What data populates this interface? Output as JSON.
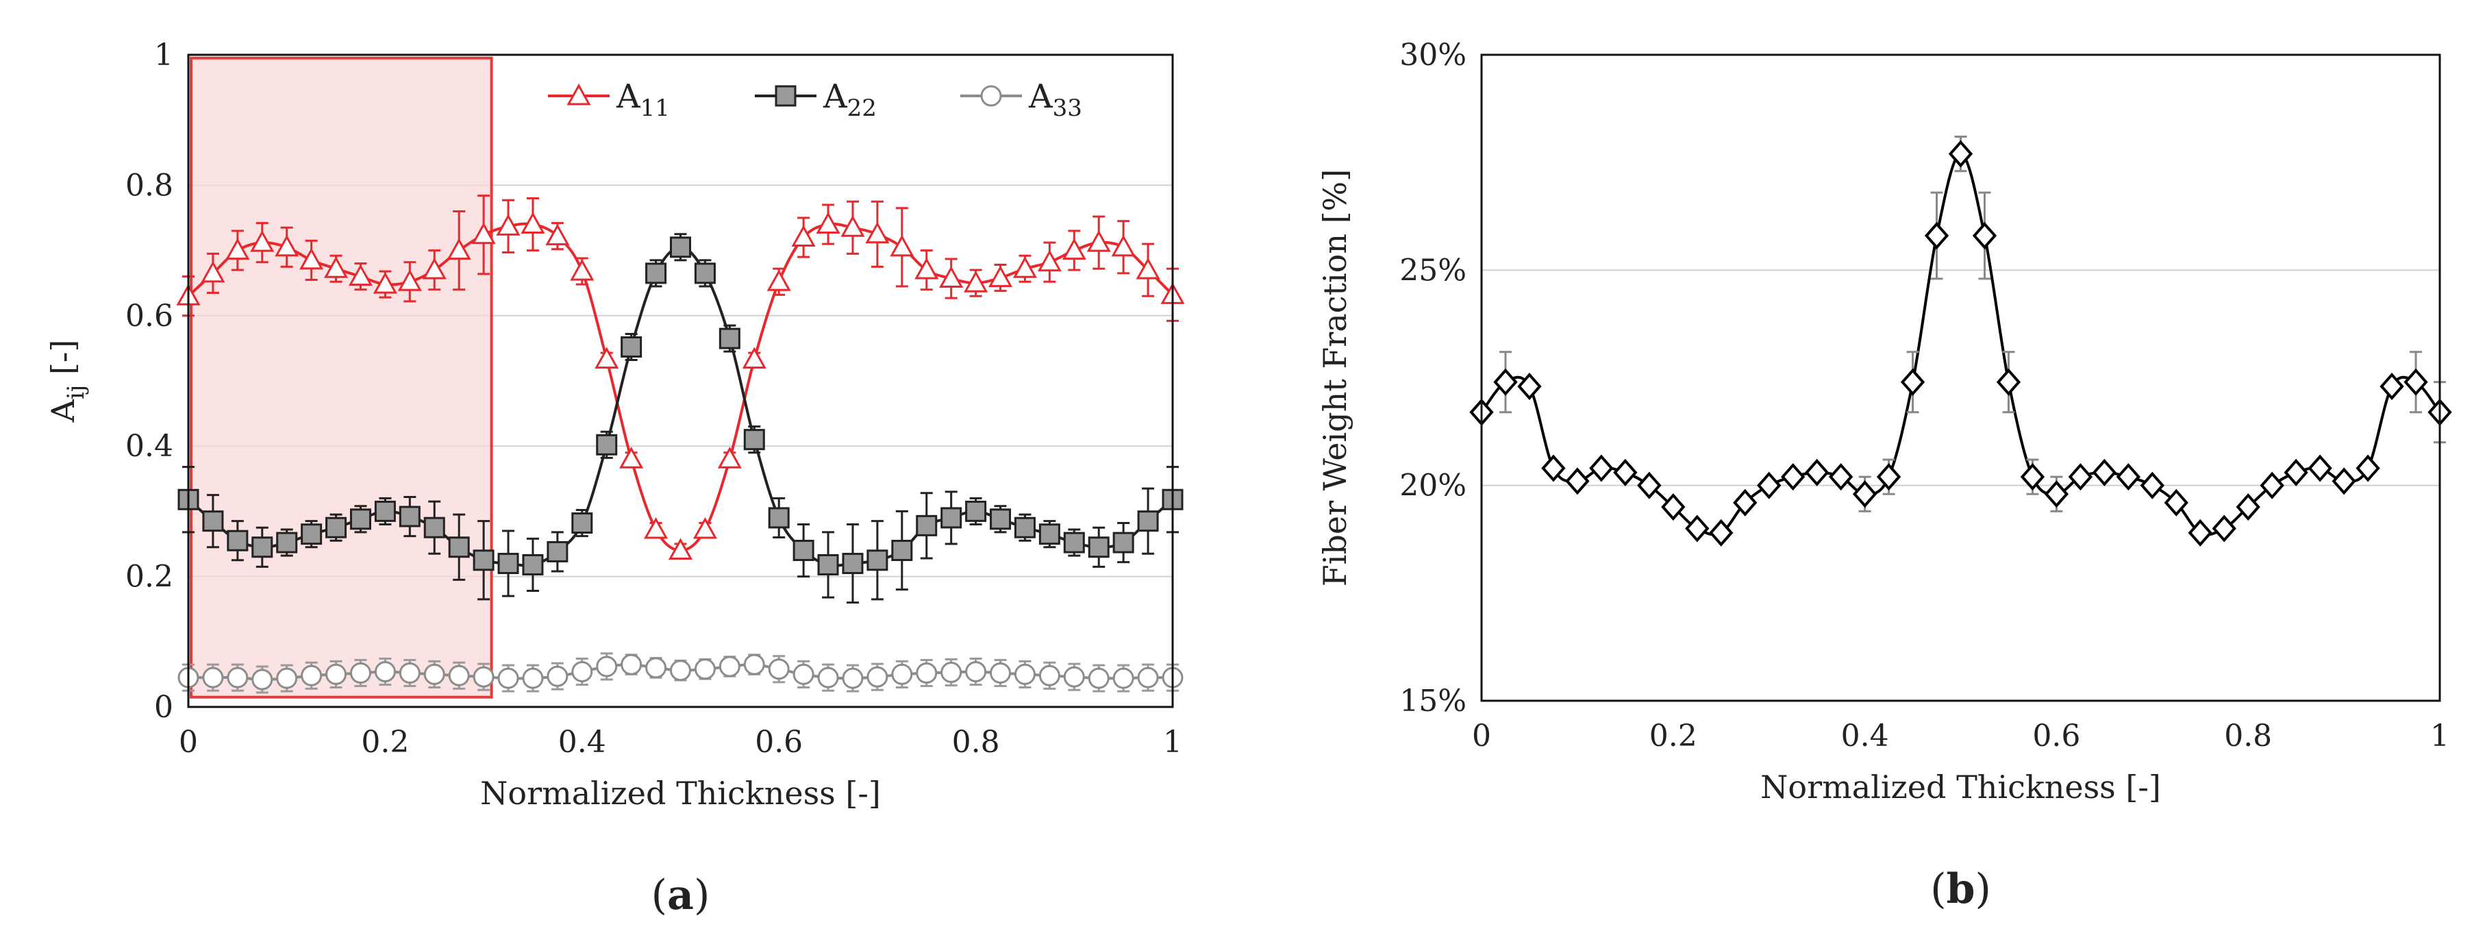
{
  "chart_data": [
    {
      "type": "line",
      "panel_label": "(a)",
      "title": "",
      "xlabel": "Normalized Thickness [-]",
      "ylabel": "A",
      "ylabel_sub": "ij",
      "ylabel_suffix": " [-]",
      "xlim": [
        0,
        1
      ],
      "ylim": [
        0,
        1
      ],
      "x_ticks": [
        "0",
        "0.2",
        "0.4",
        "0.6",
        "0.8",
        "1"
      ],
      "y_ticks": [
        "0",
        "0.2",
        "0.4",
        "0.6",
        "0.8",
        "1"
      ],
      "grid": "horizontal",
      "highlight_region": {
        "x": [
          0,
          0.308
        ],
        "y": [
          0.015,
          0.995
        ],
        "color": "#f9d9d9",
        "edge": "#e23b3b"
      },
      "x": [
        0,
        0.025,
        0.05,
        0.075,
        0.1,
        0.125,
        0.15,
        0.175,
        0.2,
        0.225,
        0.25,
        0.275,
        0.3,
        0.325,
        0.35,
        0.375,
        0.4,
        0.425,
        0.45,
        0.475,
        0.5,
        0.525,
        0.55,
        0.575,
        0.6,
        0.625,
        0.65,
        0.675,
        0.7,
        0.725,
        0.75,
        0.775,
        0.8,
        0.825,
        0.85,
        0.875,
        0.9,
        0.925,
        0.95,
        0.975,
        1
      ],
      "series": [
        {
          "name": "A",
          "sub": "11",
          "color": "#e8282d",
          "marker": "triangle",
          "values": [
            0.63,
            0.665,
            0.7,
            0.712,
            0.705,
            0.685,
            0.672,
            0.66,
            0.648,
            0.652,
            0.67,
            0.7,
            0.724,
            0.737,
            0.74,
            0.722,
            0.668,
            0.533,
            0.38,
            0.272,
            0.24,
            0.272,
            0.38,
            0.533,
            0.652,
            0.72,
            0.74,
            0.735,
            0.725,
            0.705,
            0.67,
            0.657,
            0.65,
            0.658,
            0.672,
            0.682,
            0.7,
            0.712,
            0.705,
            0.67,
            0.632
          ],
          "errors": [
            0.03,
            0.03,
            0.03,
            0.03,
            0.03,
            0.03,
            0.02,
            0.02,
            0.02,
            0.03,
            0.03,
            0.06,
            0.06,
            0.04,
            0.04,
            0.02,
            0.02,
            0.01,
            0.01,
            0.01,
            0.01,
            0.01,
            0.01,
            0.01,
            0.02,
            0.03,
            0.03,
            0.04,
            0.05,
            0.06,
            0.03,
            0.03,
            0.02,
            0.02,
            0.02,
            0.03,
            0.03,
            0.04,
            0.04,
            0.04,
            0.04
          ]
        },
        {
          "name": "A",
          "sub": "22",
          "color": "#222222",
          "marker": "square",
          "fill": "#9a9a9a",
          "values": [
            0.318,
            0.285,
            0.255,
            0.245,
            0.252,
            0.265,
            0.275,
            0.288,
            0.3,
            0.292,
            0.275,
            0.245,
            0.225,
            0.22,
            0.218,
            0.238,
            0.282,
            0.402,
            0.552,
            0.665,
            0.705,
            0.665,
            0.565,
            0.41,
            0.29,
            0.24,
            0.218,
            0.22,
            0.225,
            0.24,
            0.278,
            0.29,
            0.3,
            0.288,
            0.275,
            0.265,
            0.252,
            0.245,
            0.252,
            0.285,
            0.318
          ],
          "errors": [
            0.05,
            0.04,
            0.03,
            0.03,
            0.02,
            0.02,
            0.02,
            0.02,
            0.02,
            0.03,
            0.04,
            0.05,
            0.06,
            0.05,
            0.04,
            0.03,
            0.02,
            0.02,
            0.02,
            0.02,
            0.02,
            0.02,
            0.02,
            0.02,
            0.03,
            0.04,
            0.05,
            0.06,
            0.06,
            0.06,
            0.05,
            0.04,
            0.02,
            0.02,
            0.02,
            0.02,
            0.02,
            0.03,
            0.03,
            0.05,
            0.05
          ]
        },
        {
          "name": "A",
          "sub": "33",
          "color": "#8c8c8c",
          "marker": "circle",
          "fill": "#ffffff",
          "values": [
            0.045,
            0.045,
            0.045,
            0.042,
            0.044,
            0.048,
            0.05,
            0.052,
            0.054,
            0.052,
            0.05,
            0.048,
            0.046,
            0.044,
            0.044,
            0.047,
            0.054,
            0.062,
            0.065,
            0.06,
            0.056,
            0.058,
            0.062,
            0.065,
            0.058,
            0.05,
            0.045,
            0.044,
            0.046,
            0.05,
            0.052,
            0.053,
            0.054,
            0.052,
            0.05,
            0.048,
            0.046,
            0.044,
            0.044,
            0.045,
            0.045
          ],
          "errors": [
            0.02,
            0.02,
            0.02,
            0.02,
            0.02,
            0.02,
            0.02,
            0.02,
            0.02,
            0.02,
            0.02,
            0.02,
            0.02,
            0.02,
            0.02,
            0.02,
            0.02,
            0.02,
            0.015,
            0.015,
            0.015,
            0.015,
            0.015,
            0.015,
            0.02,
            0.02,
            0.02,
            0.02,
            0.02,
            0.02,
            0.02,
            0.02,
            0.02,
            0.02,
            0.02,
            0.02,
            0.02,
            0.02,
            0.02,
            0.02,
            0.02
          ]
        }
      ],
      "legend": "top-right"
    },
    {
      "type": "line",
      "panel_label": "(b)",
      "title": "",
      "xlabel": "Normalized Thickness [-]",
      "ylabel": "Fiber Weight Fraction [%]",
      "xlim": [
        0,
        1
      ],
      "ylim": [
        15,
        30
      ],
      "x_ticks": [
        "0",
        "0.2",
        "0.4",
        "0.6",
        "0.8",
        "1"
      ],
      "y_ticks": [
        "15%",
        "20%",
        "25%",
        "30%"
      ],
      "grid": "horizontal",
      "x": [
        0,
        0.025,
        0.05,
        0.075,
        0.1,
        0.125,
        0.15,
        0.175,
        0.2,
        0.225,
        0.25,
        0.275,
        0.3,
        0.325,
        0.35,
        0.375,
        0.4,
        0.425,
        0.45,
        0.475,
        0.5,
        0.525,
        0.55,
        0.575,
        0.6,
        0.625,
        0.65,
        0.675,
        0.7,
        0.725,
        0.75,
        0.775,
        0.8,
        0.825,
        0.85,
        0.875,
        0.9,
        0.925,
        0.95,
        0.975,
        1
      ],
      "series": [
        {
          "name": "Fiber Weight Fraction",
          "color": "#000000",
          "marker": "diamond",
          "values": [
            21.7,
            22.4,
            22.3,
            20.4,
            20.1,
            20.4,
            20.3,
            20.0,
            19.5,
            19.0,
            18.9,
            19.6,
            20.0,
            20.2,
            20.3,
            20.2,
            19.8,
            20.2,
            22.4,
            25.8,
            27.7,
            25.8,
            22.4,
            20.2,
            19.8,
            20.2,
            20.3,
            20.2,
            20.0,
            19.6,
            18.9,
            19.0,
            19.5,
            20.0,
            20.3,
            20.4,
            20.1,
            20.4,
            22.3,
            22.4,
            21.7
          ],
          "errors": [
            0,
            0.7,
            0,
            0,
            0,
            0,
            0,
            0,
            0,
            0,
            0,
            0,
            0,
            0,
            0,
            0,
            0.4,
            0.4,
            0.7,
            1.0,
            0.4,
            1.0,
            0.7,
            0.4,
            0.4,
            0,
            0,
            0,
            0,
            0,
            0,
            0,
            0,
            0,
            0,
            0,
            0,
            0,
            0,
            0.7,
            0.7
          ]
        }
      ],
      "legend": "none"
    }
  ]
}
